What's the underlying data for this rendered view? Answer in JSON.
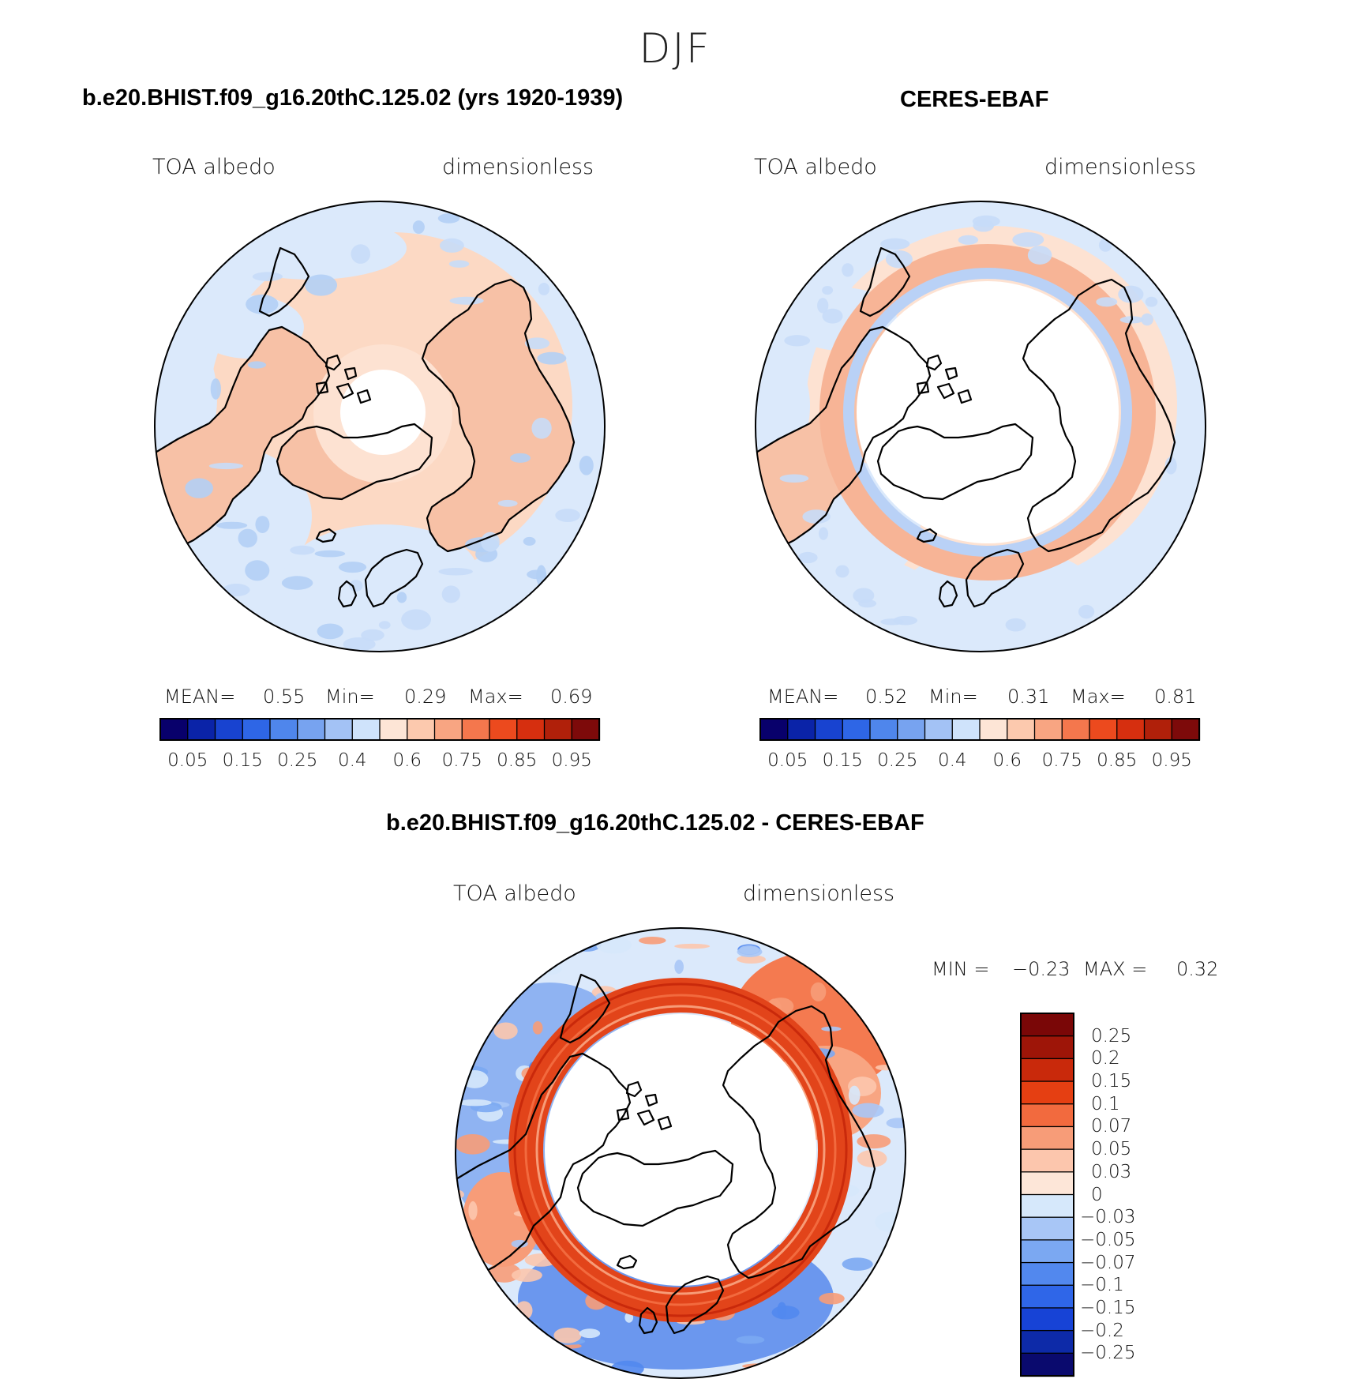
{
  "figure": {
    "title": "DJF"
  },
  "panels": [
    {
      "id": "model",
      "title": "b.e20.BHIST.f09_g16.20thC.125.02 (yrs 1920-1939)",
      "left_label": "TOA albedo",
      "right_label": "dimensionless",
      "stats": {
        "mean_label": "MEAN=",
        "mean": "0.55",
        "min_label": "Min=",
        "min": "0.29",
        "max_label": "Max=",
        "max": "0.69"
      }
    },
    {
      "id": "obs",
      "title": "CERES-EBAF",
      "left_label": "TOA albedo",
      "right_label": "dimensionless",
      "stats": {
        "mean_label": "MEAN=",
        "mean": "0.52",
        "min_label": "Min=",
        "min": "0.31",
        "max_label": "Max=",
        "max": "0.81"
      }
    },
    {
      "id": "diff",
      "title": "b.e20.BHIST.f09_g16.20thC.125.02 - CERES-EBAF",
      "left_label": "TOA albedo",
      "right_label": "dimensionless",
      "stats": {
        "min_label": "MIN =",
        "min": "−0.23",
        "max_label": "MAX =",
        "max": "0.32"
      }
    }
  ],
  "colors": {
    "sequential": [
      "#08006b",
      "#0a23a8",
      "#1843d0",
      "#2e66e6",
      "#4f86ec",
      "#77a3f0",
      "#a3c2f5",
      "#cfe3fb",
      "#fde5d6",
      "#fcc9ae",
      "#f8a582",
      "#f4774d",
      "#ec4a1e",
      "#d62f0f",
      "#b0200a",
      "#7d0a0a"
    ],
    "diverging": [
      "#0a0a6e",
      "#0d2aa8",
      "#1743d6",
      "#2f66e8",
      "#5288ee",
      "#7ba8f2",
      "#a8c6f6",
      "#d6e8fb",
      "#fde6d8",
      "#fcc6ad",
      "#f79c78",
      "#f26a3e",
      "#e53f12",
      "#c9290b",
      "#9e1508",
      "#7a0707"
    ]
  },
  "chart_data": [
    {
      "type": "heatmap",
      "projection": "north-polar-stereographic",
      "title": "b.e20.BHIST.f09_g16.20thC.125.02 (yrs 1920-1939)",
      "variable": "TOA albedo",
      "units": "dimensionless",
      "mean": 0.55,
      "min": 0.29,
      "max": 0.69,
      "colorbar_levels": [
        0.05,
        0.1,
        0.15,
        0.2,
        0.25,
        0.3,
        0.4,
        0.5,
        0.6,
        0.65,
        0.75,
        0.8,
        0.85,
        0.9,
        0.95
      ],
      "colorbar_ticks": [
        "0.05",
        "0.15",
        "0.25",
        "0.4",
        "0.6",
        "0.75",
        "0.85",
        "0.95"
      ]
    },
    {
      "type": "heatmap",
      "projection": "north-polar-stereographic",
      "title": "CERES-EBAF",
      "variable": "TOA albedo",
      "units": "dimensionless",
      "mean": 0.52,
      "min": 0.31,
      "max": 0.81,
      "colorbar_levels": [
        0.05,
        0.1,
        0.15,
        0.2,
        0.25,
        0.3,
        0.4,
        0.5,
        0.6,
        0.65,
        0.75,
        0.8,
        0.85,
        0.9,
        0.95
      ],
      "colorbar_ticks": [
        "0.05",
        "0.15",
        "0.25",
        "0.4",
        "0.6",
        "0.75",
        "0.85",
        "0.95"
      ]
    },
    {
      "type": "heatmap",
      "projection": "north-polar-stereographic",
      "title": "b.e20.BHIST.f09_g16.20thC.125.02 - CERES-EBAF",
      "variable": "TOA albedo",
      "units": "dimensionless",
      "min": -0.23,
      "max": 0.32,
      "colorbar_levels": [
        -0.25,
        -0.2,
        -0.15,
        -0.1,
        -0.07,
        -0.05,
        -0.03,
        0,
        0.03,
        0.05,
        0.07,
        0.1,
        0.15,
        0.2,
        0.25
      ],
      "colorbar_ticks": [
        "0.25",
        "0.2",
        "0.15",
        "0.1",
        "0.07",
        "0.05",
        "0.03",
        "0",
        "−0.03",
        "−0.05",
        "−0.07",
        "−0.1",
        "−0.15",
        "−0.2",
        "−0.25"
      ]
    }
  ]
}
